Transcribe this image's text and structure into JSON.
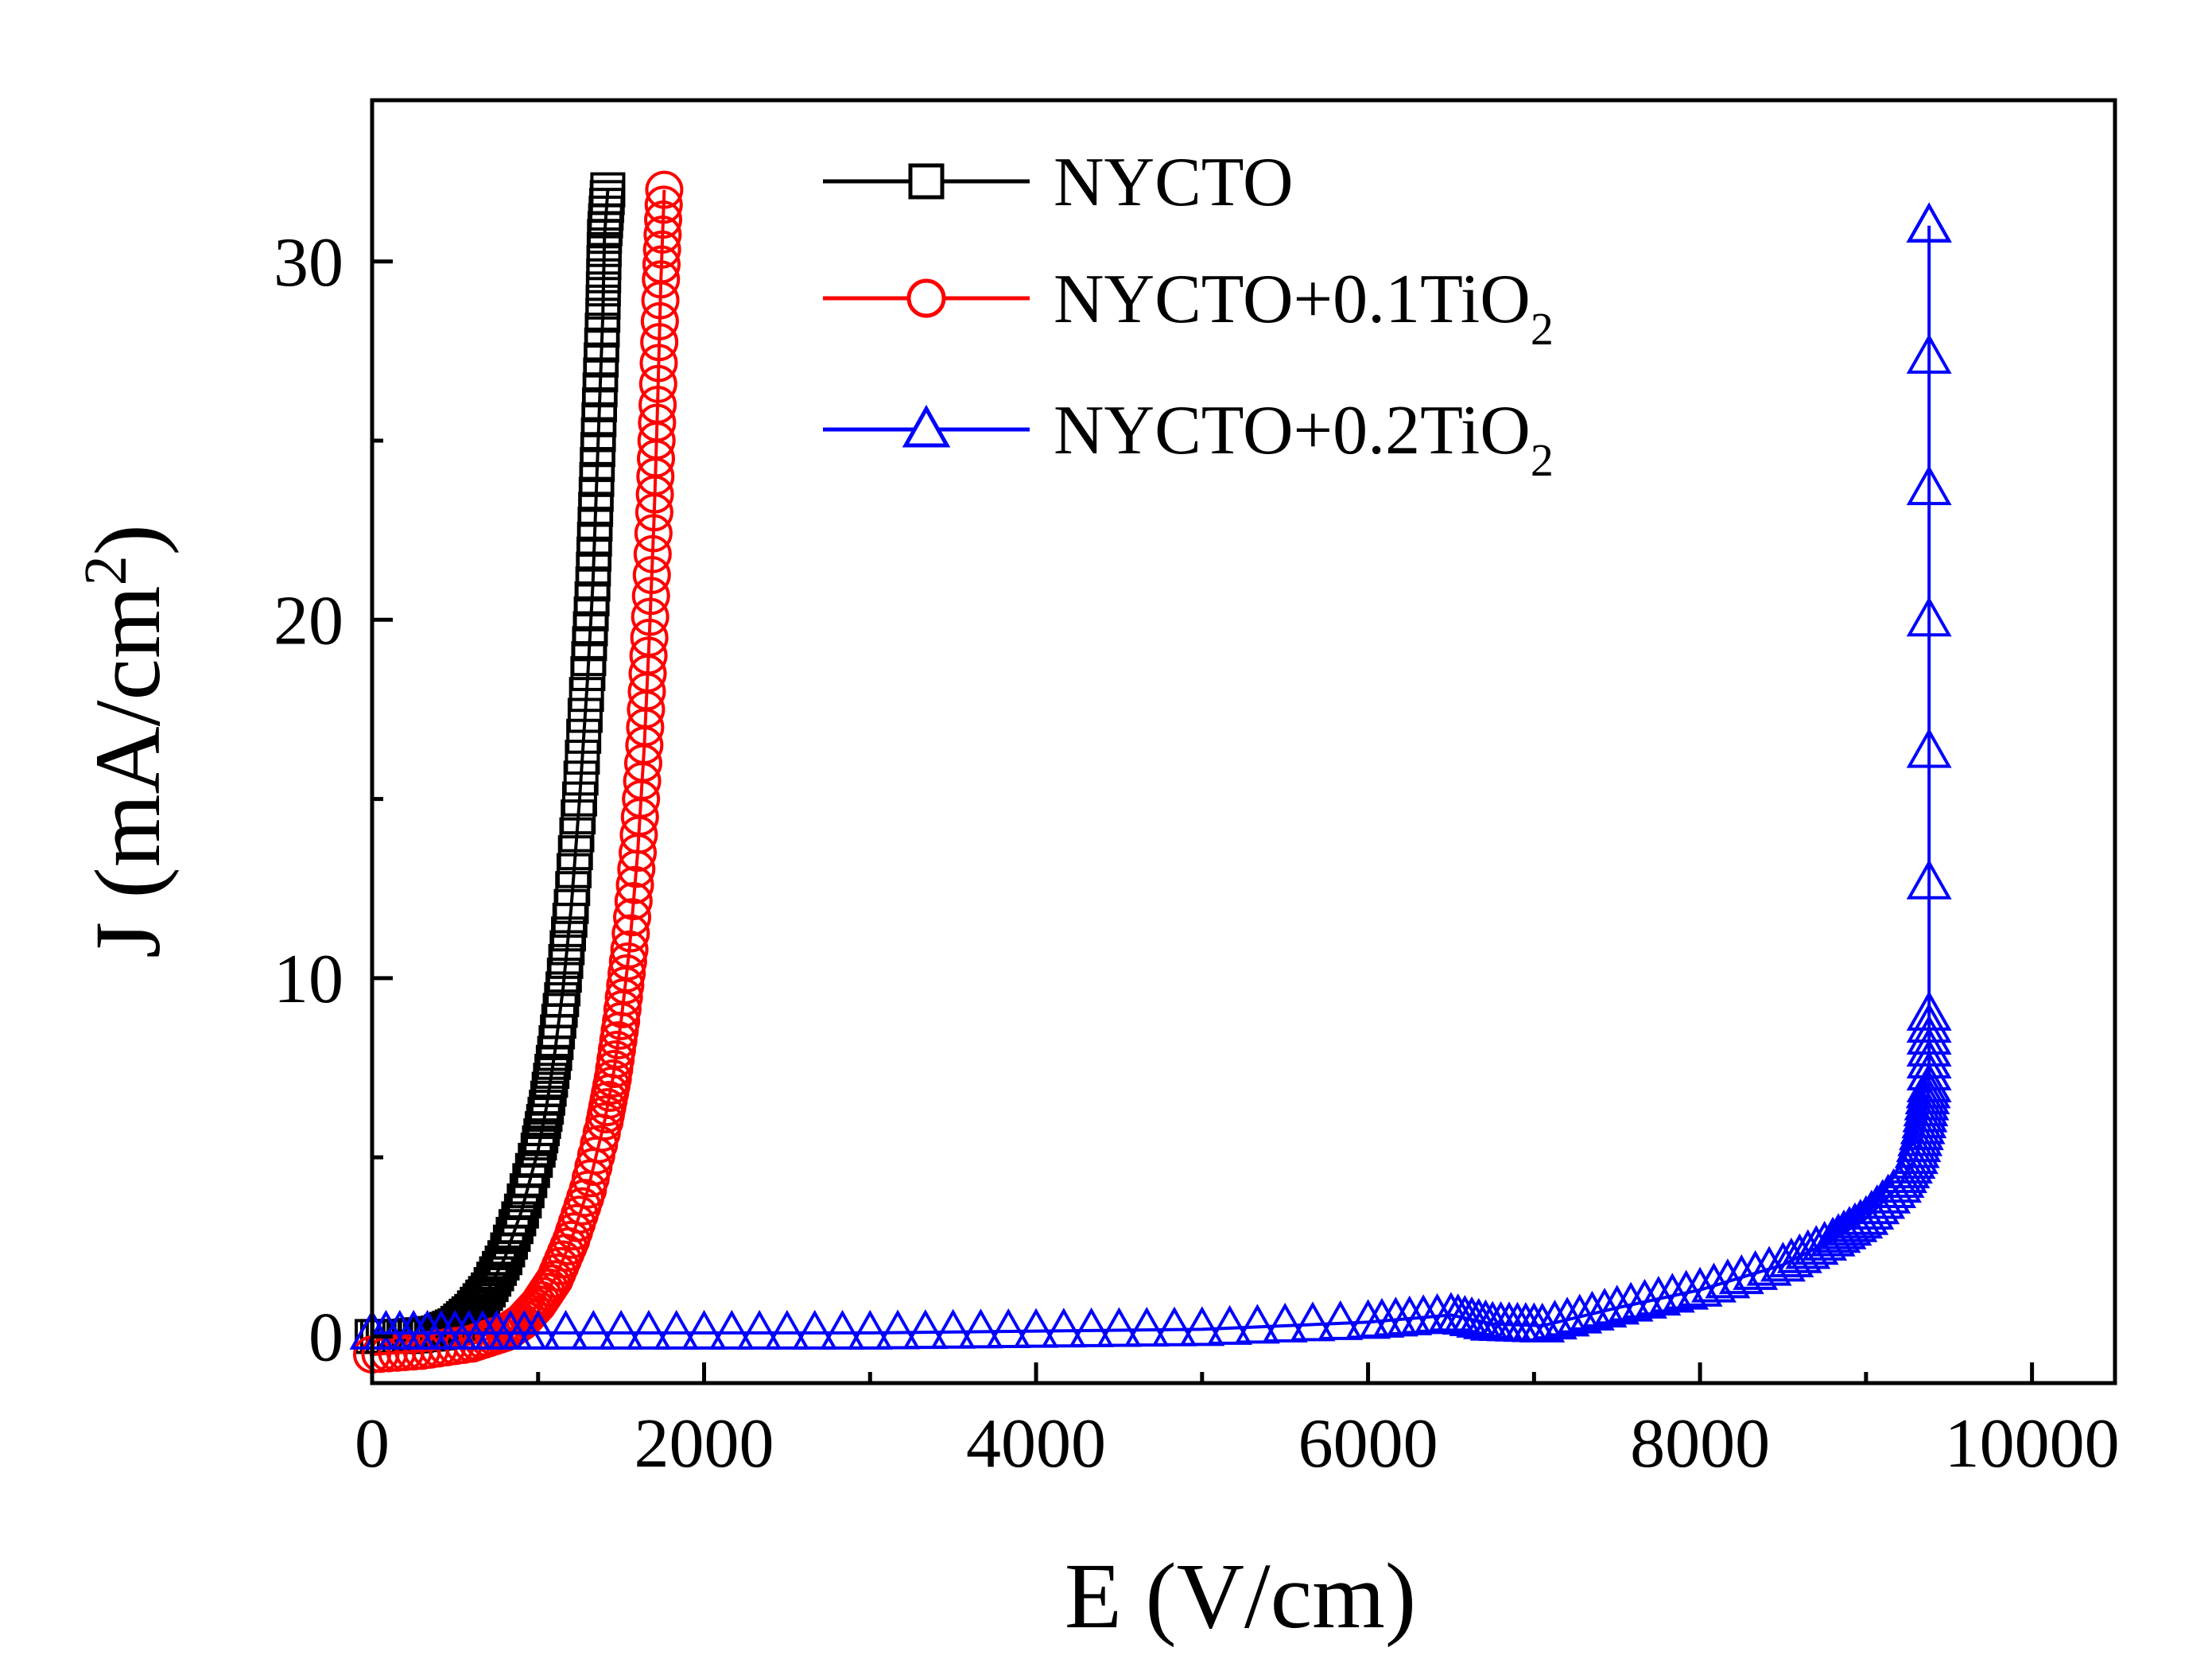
{
  "chart_data": {
    "type": "scatter",
    "title": "",
    "xlabel": "E (V/cm)",
    "ylabel_parts": {
      "base": "J (mA/cm",
      "sup": "2",
      "end": ")"
    },
    "xlim": [
      0,
      10500
    ],
    "ylim": [
      -1.3,
      34.5
    ],
    "xticks": [
      0,
      2000,
      4000,
      6000,
      8000,
      10000
    ],
    "xtick_labels": [
      "0",
      "2000",
      "4000",
      "6000",
      "8000",
      "10000"
    ],
    "yticks": [
      0,
      10,
      20,
      30
    ],
    "ytick_labels": [
      "0",
      "10",
      "20",
      "30"
    ],
    "legend_position": "top-center",
    "series": [
      {
        "name": "NYCTO",
        "legend_parts": {
          "base": "NYCTO",
          "sub": "",
          "tail": ""
        },
        "color": "#000000",
        "marker": "square",
        "x": [
          0,
          200,
          400,
          500,
          600,
          700,
          800,
          900,
          1000,
          1050,
          1100,
          1150,
          1200,
          1250,
          1300,
          1330,
          1350,
          1370,
          1390,
          1400,
          1420
        ],
        "y": [
          0,
          0,
          0.1,
          0.3,
          0.7,
          1.3,
          2.2,
          3.5,
          5.2,
          6.4,
          7.9,
          9.7,
          12.0,
          15.0,
          18.5,
          21.0,
          23.5,
          26.0,
          28.5,
          30.7,
          32.0
        ]
      },
      {
        "name": "NYCTO+0.1TiO2",
        "legend_parts": {
          "base": "NYCTO+0.1TiO",
          "sub": "2",
          "tail": ""
        },
        "color": "#ff0000",
        "marker": "circle",
        "x": [
          0,
          300,
          600,
          800,
          900,
          1000,
          1100,
          1200,
          1300,
          1400,
          1450,
          1500,
          1550,
          1600,
          1640,
          1670,
          1700,
          1720,
          1740,
          1760
        ],
        "y": [
          -0.5,
          -0.4,
          -0.2,
          0.1,
          0.4,
          0.9,
          1.6,
          2.7,
          4.1,
          6.0,
          7.2,
          8.8,
          10.8,
          13.5,
          16.5,
          19.5,
          23.0,
          26.0,
          29.5,
          32.0
        ]
      },
      {
        "name": "NYCTO+0.2TiO2",
        "legend_parts": {
          "base": "NYCTO+0.2TiO",
          "sub": "2",
          "tail": ""
        },
        "color": "#0000ff",
        "marker": "triangle",
        "x": [
          0,
          500,
          1000,
          2000,
          3000,
          4000,
          5000,
          6000,
          6500,
          6750,
          7050,
          7500,
          8000,
          8500,
          8800,
          9000,
          9200,
          9300,
          9350,
          9380,
          9380,
          9380,
          9380
        ],
        "y": [
          0.1,
          0.1,
          0.1,
          0.1,
          0.1,
          0.15,
          0.2,
          0.4,
          0.6,
          0.35,
          0.3,
          0.8,
          1.3,
          2.0,
          2.7,
          3.3,
          4.2,
          5.0,
          6.0,
          7.0,
          9.0,
          31.0,
          31.0
        ]
      }
    ]
  }
}
